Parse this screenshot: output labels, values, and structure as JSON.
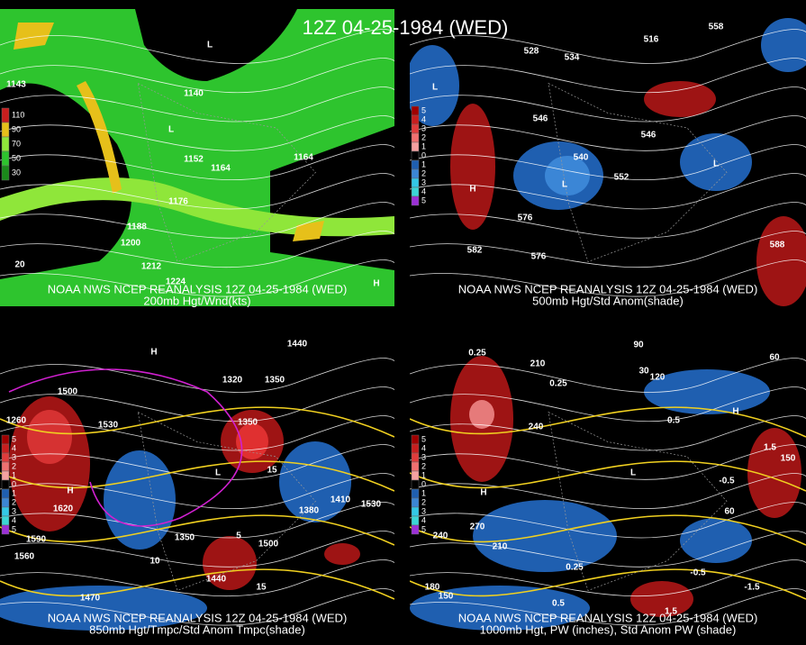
{
  "title": "12Z 04-25-1984 (WED)",
  "panels": [
    {
      "caption": "NOAA NWS NCEP REANALYSIS 12Z 04-25-1984 (WED)",
      "subcaption": "200mb Hgt/Wnd(kts)",
      "legend": [
        "110",
        "90",
        "70",
        "50",
        "30"
      ],
      "labels": [
        "1140",
        "1152",
        "1164",
        "1176",
        "1188",
        "1200",
        "1212",
        "1224",
        "1143",
        "1164",
        "20",
        "L",
        "L",
        "H"
      ]
    },
    {
      "caption": "NOAA NWS NCEP REANALYSIS 12Z 04-25-1984 (WED)",
      "subcaption": "500mb Hgt/Std Anom(shade)",
      "legend": [
        "5",
        "4",
        "3",
        "2",
        "1",
        "0",
        "1",
        "2",
        "3",
        "4",
        "5"
      ],
      "labels": [
        "558",
        "534",
        "528",
        "516",
        "546",
        "546",
        "540",
        "552",
        "576",
        "582",
        "576",
        "588",
        "L",
        "L",
        "L",
        "H"
      ]
    },
    {
      "caption": "NOAA NWS NCEP REANALYSIS 12Z 04-25-1984 (WED)",
      "subcaption": "850mb Hgt/Tmpc/Std Anom Tmpc(shade)",
      "legend": [
        "5",
        "4",
        "3",
        "2",
        "1",
        "0",
        "1",
        "2",
        "3",
        "4",
        "5"
      ],
      "labels": [
        "1440",
        "1500",
        "1530",
        "1320",
        "1350",
        "1260",
        "1350",
        "1380",
        "1410",
        "1530",
        "1590",
        "1560",
        "1620",
        "1470",
        "1350",
        "1500",
        "1440",
        "15",
        "10",
        "15",
        "5",
        "H",
        "H",
        "L"
      ]
    },
    {
      "caption": "NOAA NWS NCEP REANALYSIS 12Z 04-25-1984 (WED)",
      "subcaption": "1000mb Hgt, PW (inches), Std Anom PW (shade)",
      "legend": [
        "5",
        "4",
        "3",
        "2",
        "1",
        "0",
        "1",
        "2",
        "3",
        "4",
        "5"
      ],
      "labels": [
        "0.25",
        "210",
        "90",
        "120",
        "60",
        "30",
        "0.25",
        "240",
        "0.5",
        "1.5",
        "150",
        "-0.5",
        "60",
        "270",
        "240",
        "210",
        "180",
        "150",
        "0.25",
        "-0.5",
        "-1.5",
        "1.5",
        "0.5",
        "H",
        "H",
        "L"
      ]
    }
  ]
}
